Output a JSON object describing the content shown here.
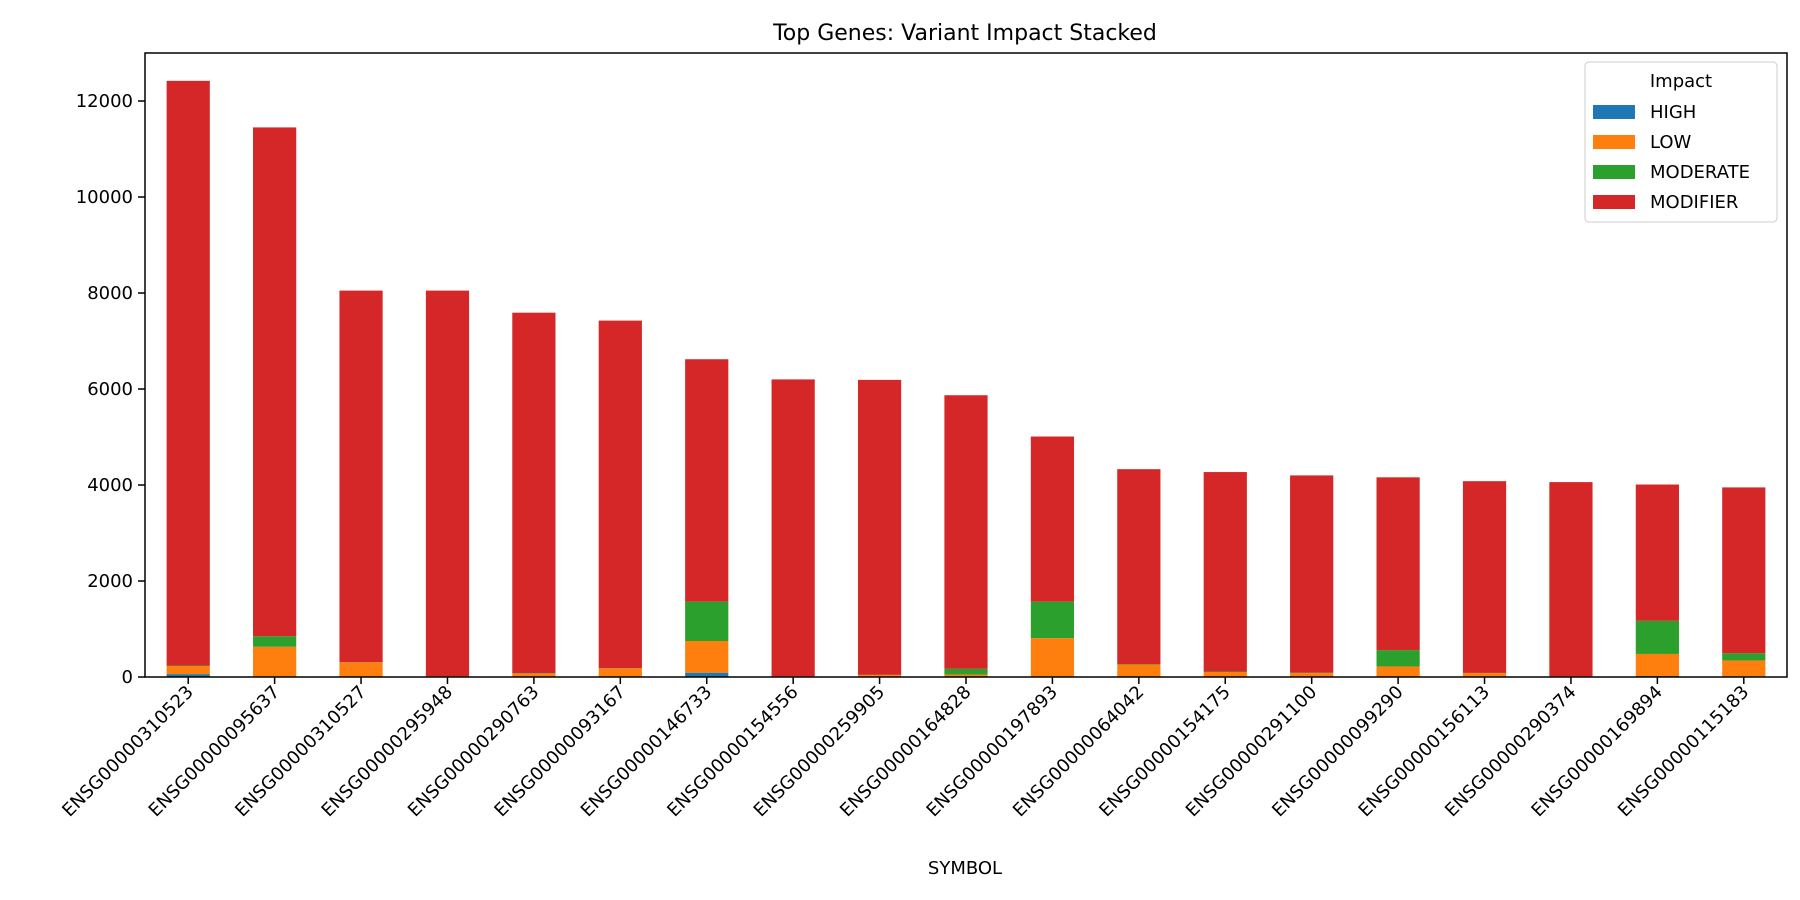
{
  "chart_data": {
    "type": "bar",
    "stacked": true,
    "title": "Top Genes: Variant Impact Stacked",
    "xlabel": "SYMBOL",
    "ylabel": "",
    "ylim": [
      0,
      13000
    ],
    "yticks": [
      0,
      2000,
      4000,
      6000,
      8000,
      10000,
      12000
    ],
    "grid": false,
    "legend": {
      "title": "Impact",
      "position": "top-right"
    },
    "categories": [
      "ENSG00000310523",
      "ENSG00000095637",
      "ENSG00000310527",
      "ENSG00000295948",
      "ENSG00000290763",
      "ENSG00000093167",
      "ENSG00000146733",
      "ENSG00000154556",
      "ENSG00000259905",
      "ENSG00000164828",
      "ENSG00000197893",
      "ENSG00000064042",
      "ENSG00000154175",
      "ENSG00000291100",
      "ENSG00000099290",
      "ENSG00000156113",
      "ENSG00000290374",
      "ENSG00000169894",
      "ENSG00000115183"
    ],
    "series": [
      {
        "name": "HIGH",
        "color": "#1f77b4",
        "values": [
          60,
          10,
          5,
          0,
          5,
          5,
          90,
          0,
          5,
          10,
          10,
          5,
          5,
          5,
          10,
          5,
          0,
          20,
          15
        ]
      },
      {
        "name": "LOW",
        "color": "#ff7f0e",
        "values": [
          170,
          620,
          300,
          10,
          65,
          175,
          660,
          10,
          35,
          40,
          800,
          255,
          100,
          75,
          210,
          75,
          10,
          460,
          330
        ]
      },
      {
        "name": "MODERATE",
        "color": "#2ca02c",
        "values": [
          10,
          220,
          5,
          5,
          10,
          5,
          820,
          5,
          5,
          120,
          760,
          10,
          10,
          10,
          340,
          5,
          5,
          690,
          150
        ]
      },
      {
        "name": "MODIFIER",
        "color": "#d62728",
        "values": [
          12180,
          10600,
          7740,
          8035,
          7510,
          7240,
          5050,
          6185,
          6145,
          5700,
          3440,
          4060,
          4155,
          4110,
          3600,
          3995,
          4045,
          2840,
          3455
        ]
      }
    ]
  }
}
